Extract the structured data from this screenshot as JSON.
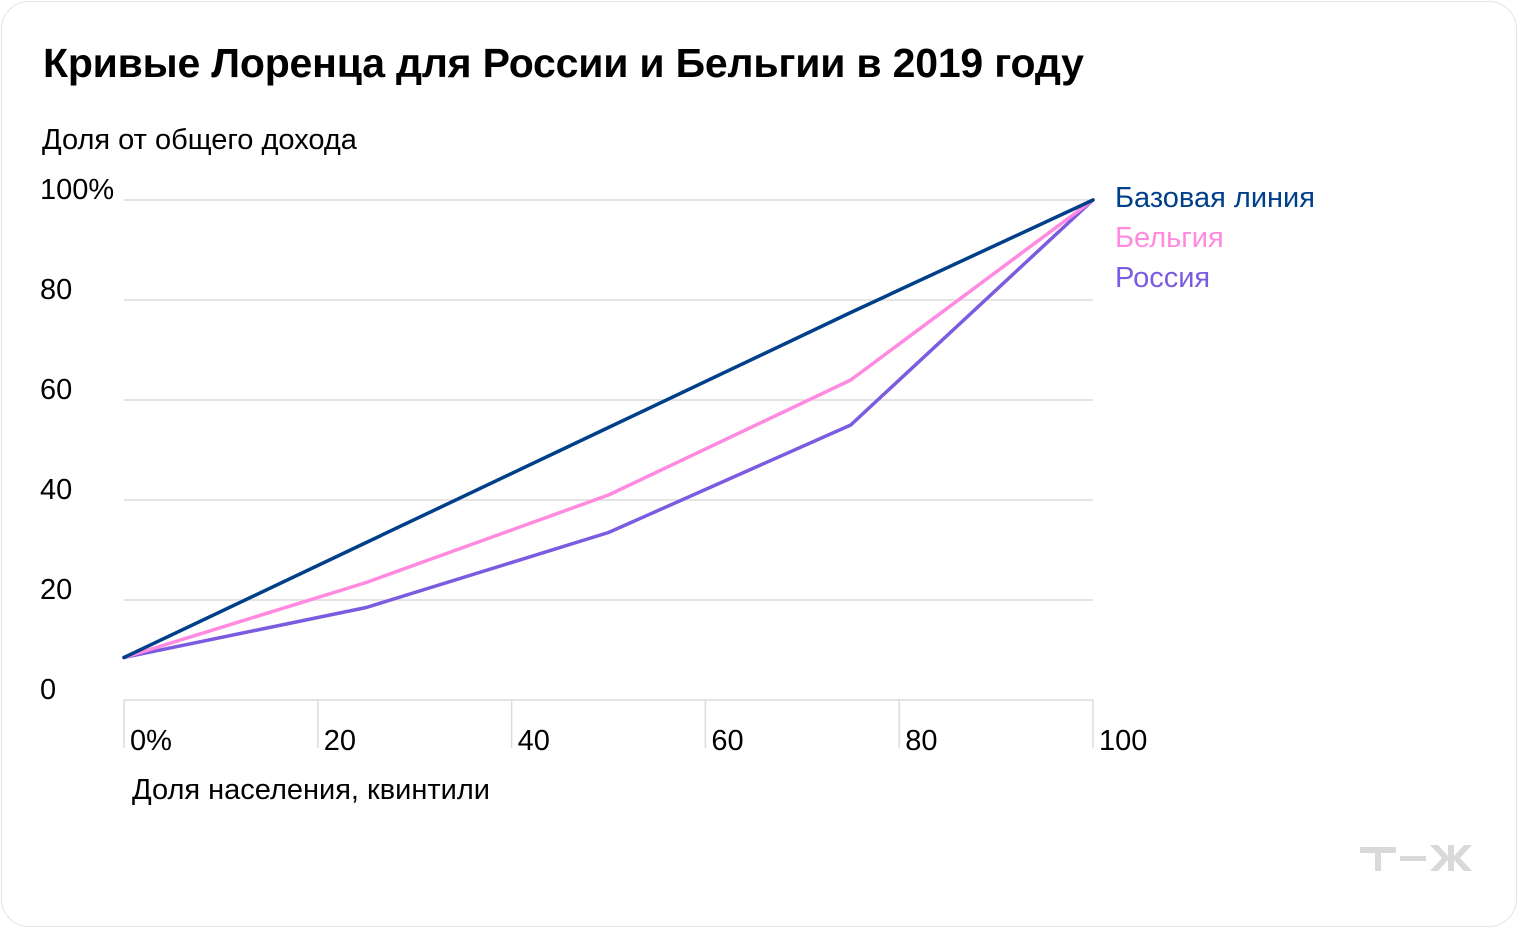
{
  "chart_data": {
    "type": "line",
    "title": "Кривые Лоренца для России и Бельгии в 2019 году",
    "ylabel": "Доля от общего дохода",
    "xlabel": "Доля населения, квинтили",
    "x": [
      0,
      25,
      50,
      75,
      100
    ],
    "xlim": [
      0,
      100
    ],
    "ylim": [
      0,
      100
    ],
    "xticks": [
      0,
      20,
      40,
      60,
      80,
      100
    ],
    "xtick_labels": [
      "0%",
      "20",
      "40",
      "60",
      "80",
      "100"
    ],
    "yticks": [
      0,
      20,
      40,
      60,
      80,
      100
    ],
    "ytick_labels": [
      "0",
      "20",
      "40",
      "60",
      "80",
      "100%"
    ],
    "grid": "horizontal",
    "legend_position": "right",
    "series": [
      {
        "name": "Базовая линия",
        "color": "#003f8a",
        "values": [
          8.5,
          31.5,
          54.5,
          77.5,
          100
        ]
      },
      {
        "name": "Бельгия",
        "color": "#ff8adf",
        "values": [
          8.5,
          23.5,
          41,
          64,
          100
        ]
      },
      {
        "name": "Россия",
        "color": "#7b5ce0",
        "values": [
          8.5,
          18.5,
          33.5,
          55,
          100
        ]
      }
    ]
  },
  "logo": {
    "name": "tzh-logo-icon",
    "color": "#d9d9d9"
  }
}
